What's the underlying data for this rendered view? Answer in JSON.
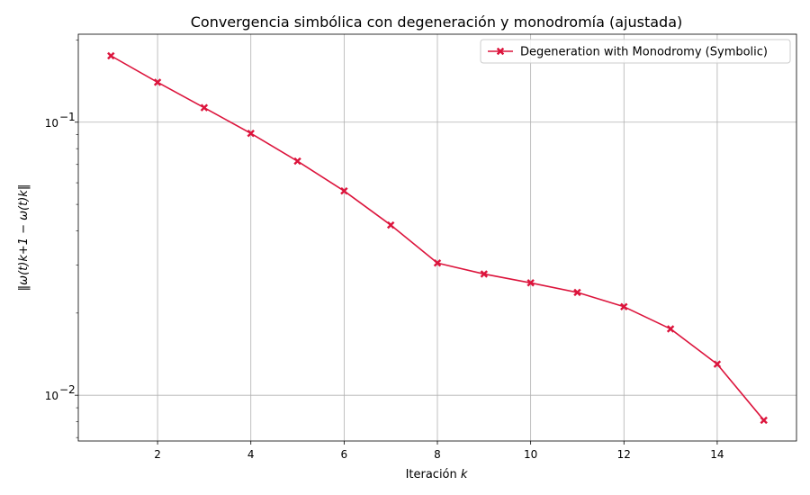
{
  "chart_data": {
    "type": "line",
    "title": "Convergencia simbólica con degeneración y monodromía (ajustada)",
    "xlabel_text": "Iteración ",
    "xlabel_var": "k",
    "ylabel": "‖ω(t)k+1 − ω(t)k‖",
    "yscale": "log",
    "xlim": [
      0.3,
      15.7
    ],
    "ylim": [
      0.0068,
      0.21
    ],
    "xticks": [
      2,
      4,
      6,
      8,
      10,
      12,
      14
    ],
    "xtick_labels": [
      "2",
      "4",
      "6",
      "8",
      "10",
      "12",
      "14"
    ],
    "yticks_major": [
      0.01,
      0.1
    ],
    "ytick_labels": [
      {
        "base": "10",
        "exp": "−2"
      },
      {
        "base": "10",
        "exp": "−1"
      }
    ],
    "grid": true,
    "legend_position": "top-right",
    "series": [
      {
        "name": "Degeneration with Monodromy (Symbolic)",
        "color": "#dc143c",
        "marker": "X",
        "x": [
          1,
          2,
          3,
          4,
          5,
          6,
          7,
          8,
          9,
          10,
          11,
          12,
          13,
          14,
          15
        ],
        "y": [
          0.175,
          0.14,
          0.113,
          0.091,
          0.072,
          0.056,
          0.042,
          0.0305,
          0.0278,
          0.0258,
          0.0238,
          0.0211,
          0.0175,
          0.013,
          0.0081
        ]
      }
    ]
  }
}
